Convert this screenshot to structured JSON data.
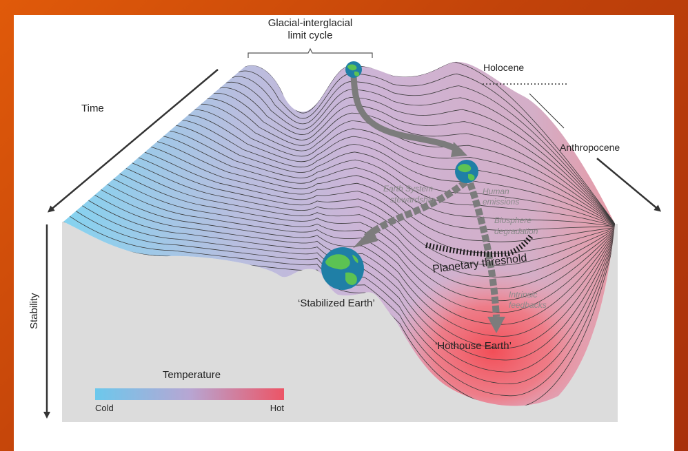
{
  "title_top_line1": "Glacial-interglacial",
  "title_top_line2": "limit cycle",
  "labels": {
    "holocene": "Holocene",
    "anthropocene": "Anthropocene",
    "time": "Time",
    "stability": "Stability",
    "earth_system_line1": "Earth System",
    "earth_system_line2": "stewardship",
    "human_line1": "Human",
    "human_line2": "emissions",
    "biosphere_line1": "Biosphere",
    "biosphere_line2": "degradation",
    "planetary_threshold": "Planetary threshold",
    "intrinsic_line1": "Intrinsic",
    "intrinsic_line2": "feedbacks",
    "stabilized_earth": "‘Stabilized Earth’",
    "hothouse_earth": "‘Hothouse Earth’"
  },
  "legend": {
    "title": "Temperature",
    "cold": "Cold",
    "hot": "Hot",
    "cold_color": "#6cc8ec",
    "hot_color": "#ec5566"
  },
  "colors": {
    "background": "#d53f0a",
    "ground": "#dcdcdc",
    "surface_mid": "#ccb3d6",
    "arrow": "#333333",
    "path_arrow": "#7c7c7c",
    "globe_ocean": "#1f7fa6",
    "globe_land": "#5cc253"
  }
}
